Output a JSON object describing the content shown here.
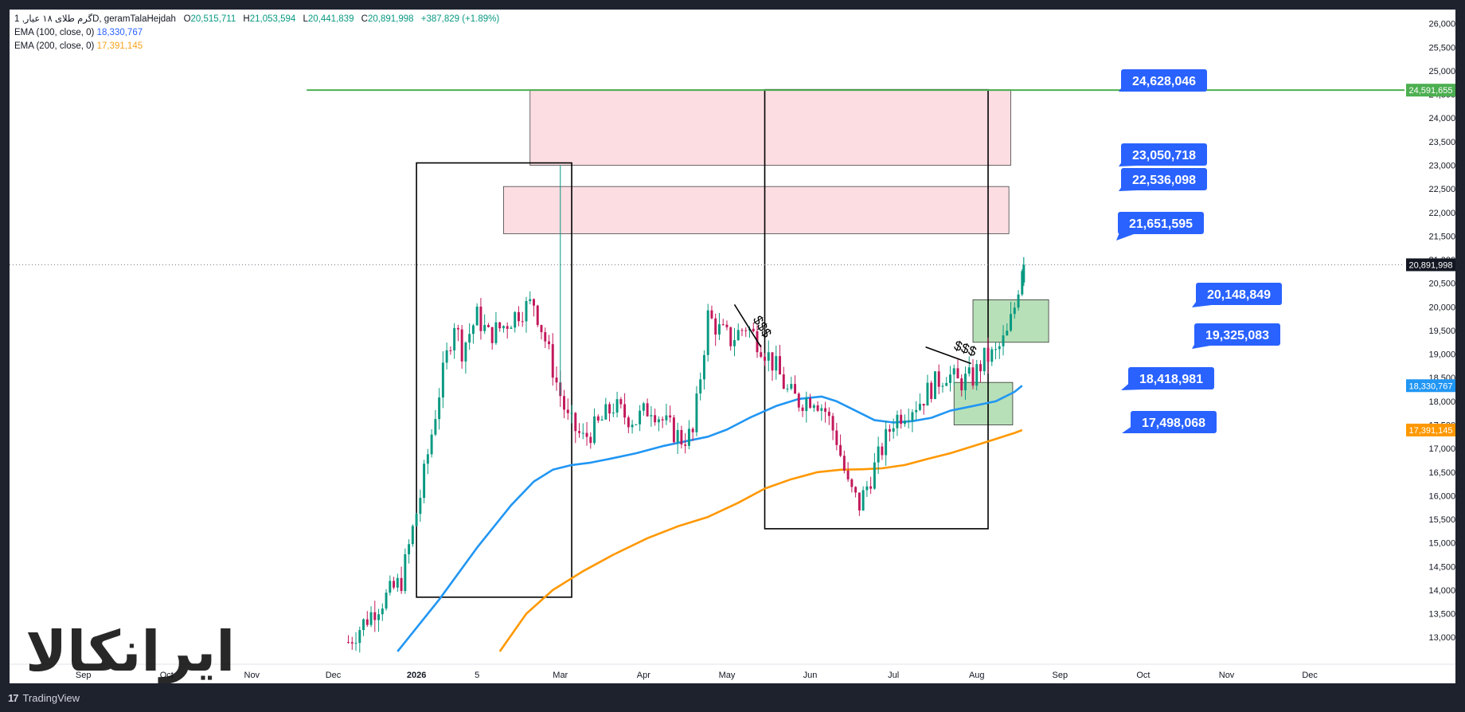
{
  "legend": {
    "symbol_line": "گرم طلای ۱۸ عیار, 1D, geramTalaHejdah",
    "o_key": "O",
    "o_val": "20,515,711",
    "h_key": "H",
    "h_val": "21,053,594",
    "l_key": "L",
    "l_val": "20,441,839",
    "c_key": "C",
    "c_val": "20,891,998",
    "change": "+387,829 (+1.89%)",
    "ema100_label": "EMA (100, close, 0)",
    "ema100_value": "18,330,767",
    "ema200_label": "EMA (200, close, 0)",
    "ema200_value": "17,391,145"
  },
  "footer": {
    "brand": "TradingView",
    "brand_mark": "17"
  },
  "watermark": "ایرانکالا",
  "colors": {
    "background": "#ffffff",
    "up": "#089981",
    "down": "#c2185b",
    "ema100": "#2196f3",
    "ema200": "#ff9800",
    "resistance": "#4caf50",
    "callout": "#2962ff",
    "supply_zone": "#fcdde2",
    "demand_zone": "#b8e0b8"
  },
  "chart_data": {
    "type": "candlestick",
    "symbol": "geramTalaHejdah",
    "timeframe": "1D",
    "y_axis": {
      "ylim": [
        12700000,
        26400000
      ],
      "ticks": [
        "26,000,000",
        "25,500,000",
        "25,000,000",
        "24,500,000",
        "24,000,000",
        "23,500,000",
        "23,000,000",
        "22,500,000",
        "22,000,000",
        "21,500,000",
        "21,000,000",
        "20,500,000",
        "20,000,000",
        "19,500,000",
        "19,000,000",
        "18,500,000",
        "18,000,000",
        "17,500,000",
        "17,000,000",
        "16,500,000",
        "16,000,000",
        "15,500,000",
        "15,000,000",
        "14,500,000",
        "14,000,000",
        "13,500,000",
        "13,000,000"
      ]
    },
    "x_axis": {
      "ticks": [
        {
          "label": "Sep",
          "week": -17.2
        },
        {
          "label": "Oct",
          "week": -12.8
        },
        {
          "label": "Nov",
          "week": -8.3
        },
        {
          "label": "Dec",
          "week": -4.0
        },
        {
          "label": "2026",
          "week": 0.4
        },
        {
          "label": "5",
          "week": 3.6
        },
        {
          "label": "Mar",
          "week": 8.0
        },
        {
          "label": "Apr",
          "week": 12.4
        },
        {
          "label": "May",
          "week": 16.8
        },
        {
          "label": "Jun",
          "week": 21.2
        },
        {
          "label": "Jul",
          "week": 25.6
        },
        {
          "label": "Aug",
          "week": 30.0
        },
        {
          "label": "Sep",
          "week": 34.4
        },
        {
          "label": "Oct",
          "week": 38.8
        },
        {
          "label": "Nov",
          "week": 43.2
        },
        {
          "label": "Dec",
          "week": 47.6
        }
      ],
      "xlim": [
        -21.1,
        52.6
      ]
    },
    "price_path": {
      "x_week": [
        -3.2,
        -1.8,
        -0.4,
        0.6,
        1.6,
        2.4,
        2.8,
        3.6,
        4.2,
        5.0,
        5.8,
        6.6,
        7.2,
        7.8,
        8.4,
        9.2,
        10.0,
        10.8,
        11.4,
        12.0,
        12.8,
        13.6,
        14.4,
        15.0,
        15.8,
        16.4,
        17.0,
        17.8,
        18.6,
        19.4,
        20.0,
        20.6,
        21.4,
        22.0,
        22.6,
        23.2,
        23.8,
        24.4,
        25.0,
        25.6,
        26.2,
        27.0,
        27.6,
        28.4,
        29.0,
        29.8,
        30.4,
        31.0,
        31.6,
        32.0,
        32.4
      ],
      "close": [
        12900000,
        13600000,
        14200000,
        16000000,
        18200000,
        19700000,
        19100000,
        19800000,
        19400000,
        19600000,
        19900000,
        20100000,
        19300000,
        18400000,
        17600000,
        17200000,
        17500000,
        17900000,
        17700000,
        17600000,
        17900000,
        17500000,
        17200000,
        17300000,
        19800000,
        19500000,
        19300000,
        19600000,
        19200000,
        18700000,
        18200000,
        18000000,
        18100000,
        17800000,
        17200000,
        16200000,
        15800000,
        16400000,
        17000000,
        17600000,
        17800000,
        18000000,
        18300000,
        18600000,
        18400000,
        18500000,
        18900000,
        19000000,
        19400000,
        20000000,
        20891998
      ],
      "notable_high_week": 8.0,
      "notable_high_value": 23000000
    },
    "ema100": {
      "x_week": [
        -0.6,
        1.6,
        3.6,
        5.4,
        6.6,
        7.6,
        8.6,
        9.6,
        10.6,
        12.0,
        13.4,
        14.6,
        15.8,
        16.8,
        18.0,
        19.4,
        20.6,
        21.8,
        22.6,
        23.6,
        24.6,
        25.6,
        26.6,
        27.6,
        28.6,
        29.8,
        31.0,
        32.0,
        32.4
      ],
      "values": [
        12700000,
        13800000,
        14900000,
        15800000,
        16300000,
        16550000,
        16650000,
        16700000,
        16780000,
        16900000,
        17050000,
        17150000,
        17250000,
        17400000,
        17650000,
        17900000,
        18050000,
        18100000,
        18000000,
        17800000,
        17600000,
        17550000,
        17580000,
        17650000,
        17800000,
        17900000,
        18000000,
        18200000,
        18330767
      ]
    },
    "ema200": {
      "x_week": [
        4.8,
        6.2,
        7.6,
        9.2,
        10.8,
        12.6,
        14.2,
        15.8,
        17.4,
        18.8,
        20.2,
        21.6,
        22.8,
        24.0,
        25.0,
        26.2,
        27.4,
        28.6,
        29.8,
        31.0,
        32.0,
        32.4
      ],
      "values": [
        12700000,
        13500000,
        14000000,
        14400000,
        14750000,
        15100000,
        15350000,
        15550000,
        15850000,
        16150000,
        16350000,
        16500000,
        16550000,
        16560000,
        16580000,
        16650000,
        16780000,
        16900000,
        17050000,
        17200000,
        17330000,
        17391145
      ]
    },
    "annotations": {
      "resistance_line": {
        "value": 24591655,
        "x_start_week": -5.4
      },
      "supply_zones": [
        {
          "x0_week": 6.4,
          "x1_week": 31.8,
          "y0": 23000000,
          "y1": 24600000
        },
        {
          "x0_week": 5.0,
          "x1_week": 31.7,
          "y0": 21550000,
          "y1": 22550000
        }
      ],
      "demand_zones": [
        {
          "x0_week": 29.8,
          "x1_week": 33.8,
          "y0": 19250000,
          "y1": 20150000
        },
        {
          "x0_week": 28.8,
          "x1_week": 31.9,
          "y0": 17500000,
          "y1": 18400000
        }
      ],
      "boxes": [
        {
          "x0_week": 0.4,
          "x1_week": 8.6,
          "y0": 13850000,
          "y1": 23050000
        },
        {
          "x0_week": 18.8,
          "x1_week": 30.6,
          "y0": 15300000,
          "y1": 24600000
        }
      ],
      "trendlines": [
        {
          "x0_week": 17.2,
          "y0": 20050000,
          "x1_week": 18.6,
          "y1": 19150000,
          "label": "$$$"
        },
        {
          "x0_week": 27.3,
          "y0": 19150000,
          "x1_week": 29.7,
          "y1": 18800000,
          "label": "$$$"
        }
      ],
      "callouts": [
        {
          "value": 24628046,
          "label": "24,628,046"
        },
        {
          "value": 23050718,
          "label": "23,050,718"
        },
        {
          "value": 22536098,
          "label": "22,536,098"
        },
        {
          "value": 21651595,
          "label": "21,651,595"
        },
        {
          "value": 20148849,
          "label": "20,148,849"
        },
        {
          "value": 19325083,
          "label": "19,325,083"
        },
        {
          "value": 18418981,
          "label": "18,418,981"
        },
        {
          "value": 17498068,
          "label": "17,498,068"
        }
      ]
    },
    "price_badges": [
      {
        "value": 24591655,
        "label": "24,591,655",
        "color": "#4caf50"
      },
      {
        "value": 20891998,
        "label": "20,891,998",
        "color": "#131722"
      },
      {
        "value": 18330767,
        "label": "18,330,767",
        "color": "#2196f3"
      },
      {
        "value": 17391145,
        "label": "17,391,145",
        "color": "#ff9800"
      }
    ],
    "last_price": 20891998
  }
}
